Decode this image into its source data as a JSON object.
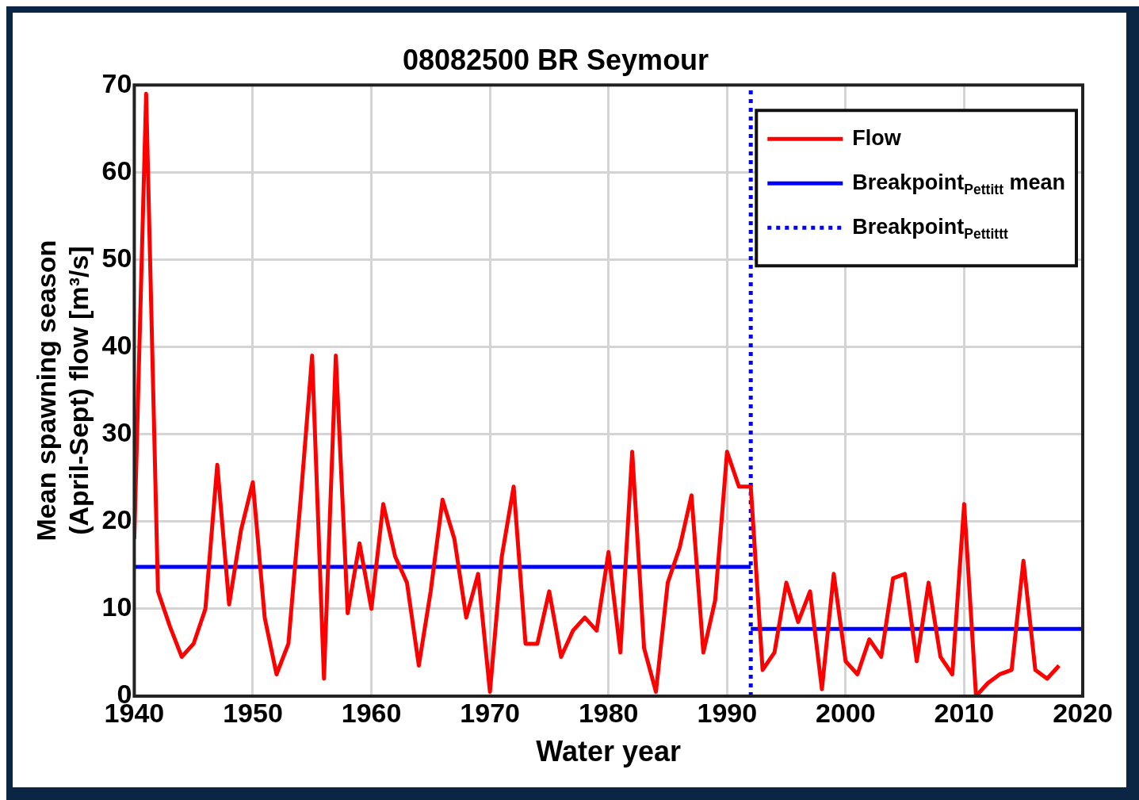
{
  "chart_data": {
    "type": "line",
    "title": "08082500 BR Seymour",
    "xlabel": "Water year",
    "ylabel": "Mean spawning season\n(April-Sept) flow [m³/s]",
    "x": [
      1940,
      1941,
      1942,
      1943,
      1944,
      1945,
      1946,
      1947,
      1948,
      1949,
      1950,
      1951,
      1952,
      1953,
      1954,
      1955,
      1956,
      1957,
      1958,
      1959,
      1960,
      1961,
      1962,
      1963,
      1964,
      1965,
      1966,
      1967,
      1968,
      1969,
      1970,
      1971,
      1972,
      1973,
      1974,
      1975,
      1976,
      1977,
      1978,
      1979,
      1980,
      1981,
      1982,
      1983,
      1984,
      1985,
      1986,
      1987,
      1988,
      1989,
      1990,
      1991,
      1992,
      1993,
      1994,
      1995,
      1996,
      1997,
      1998,
      1999,
      2000,
      2001,
      2002,
      2003,
      2004,
      2005,
      2006,
      2007,
      2008,
      2009,
      2010,
      2011,
      2012,
      2013,
      2014,
      2015,
      2016,
      2017,
      2018
    ],
    "series": [
      {
        "name": "Flow",
        "color": "#ff0000",
        "values": [
          18,
          69,
          12,
          8,
          4.5,
          6,
          10,
          26.5,
          10.5,
          19,
          24.5,
          9,
          2.5,
          6,
          22,
          39,
          2,
          39,
          9.5,
          17.5,
          10,
          22,
          16,
          13,
          3.5,
          12,
          22.5,
          18,
          9,
          14,
          0.5,
          16,
          24,
          6,
          6,
          12,
          4.5,
          7.5,
          9,
          7.5,
          16.5,
          5,
          28,
          5.5,
          0.5,
          13,
          17,
          23,
          5,
          11,
          28,
          24,
          24,
          3,
          5,
          13,
          8.5,
          12,
          0.8,
          14,
          4,
          2.5,
          6.5,
          4.5,
          13.5,
          14,
          4,
          13,
          4.5,
          2.5,
          22,
          0,
          1.5,
          2.5,
          3,
          15.5,
          3,
          2,
          3.5
        ]
      },
      {
        "name": "Breakpoint$_{Pettitt}$ mean",
        "color": "#0000ff",
        "x": [
          1940,
          1992
        ],
        "values": [
          14.8,
          14.8
        ]
      },
      {
        "color": "#0000ff",
        "x": [
          1992,
          2020
        ],
        "values": [
          7.7,
          7.7
        ]
      },
      {
        "name": "Breakpoint$_{Pettittt}$",
        "color": "#0000ff",
        "x": [
          1992,
          1992
        ],
        "values": [
          0,
          70
        ],
        "line_style": "dotted"
      }
    ],
    "xlim": [
      1940,
      2020
    ],
    "xticks": [
      1940,
      1950,
      1960,
      1970,
      1980,
      1990,
      2000,
      2010,
      2020
    ],
    "ylim": [
      0,
      70
    ],
    "yticks": [
      0,
      10,
      20,
      30,
      40,
      50,
      60,
      70
    ],
    "grid": true,
    "legend": "top right",
    "marker": "none",
    "line_style": "solid"
  }
}
